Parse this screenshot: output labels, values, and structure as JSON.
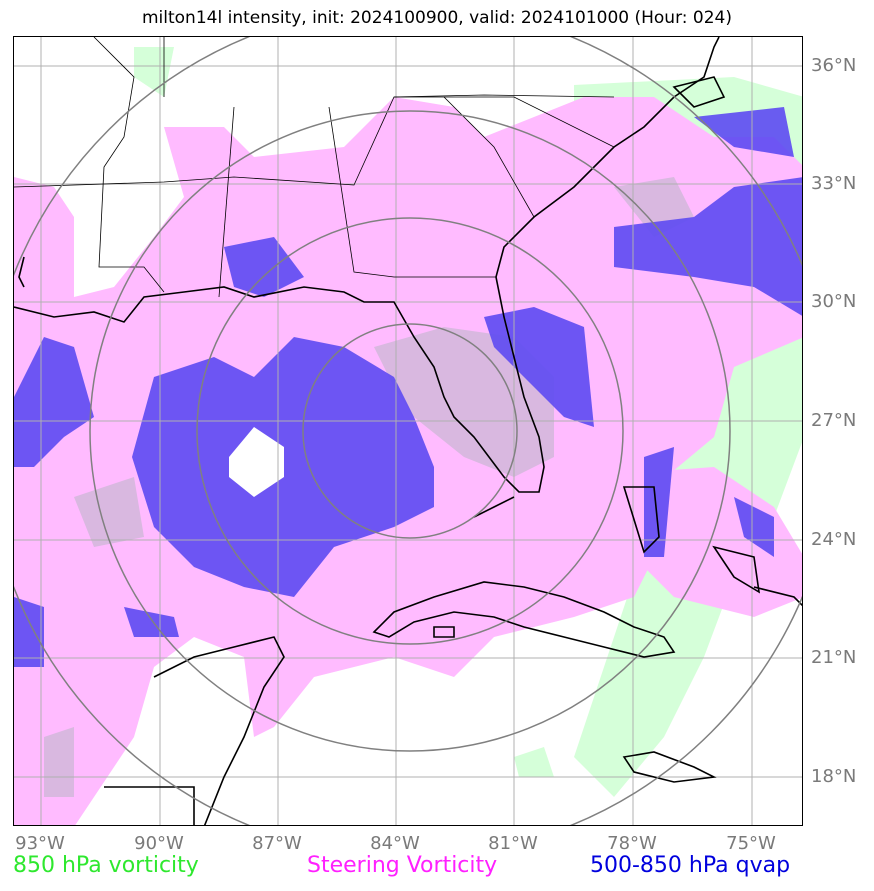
{
  "title": "milton14l intensity, init: 2024100900, valid: 2024101000 (Hour: 024)",
  "map": {
    "lat_labels": [
      "36°N",
      "33°N",
      "30°N",
      "27°N",
      "24°N",
      "21°N",
      "18°N"
    ],
    "lon_labels": [
      "93°W",
      "90°W",
      "87°W",
      "84°W",
      "81°W",
      "78°W",
      "75°W"
    ],
    "range_rings_count": 4,
    "colors": {
      "vorticity_850": "#d5ffd9",
      "steering_vorticity": "#ffbbff",
      "qvap": "#4a3bf0",
      "gridline": "#b0b0b0",
      "ring": "#808080",
      "coast": "#000000"
    }
  },
  "legend": {
    "vort850": {
      "label": "850 hPa vorticity",
      "color": "#2ee82e"
    },
    "steering": {
      "label": "Steering Vorticity",
      "color": "#ff20ff"
    },
    "qvap": {
      "label": "500-850 hPa qvap",
      "color": "#0000dd"
    }
  }
}
